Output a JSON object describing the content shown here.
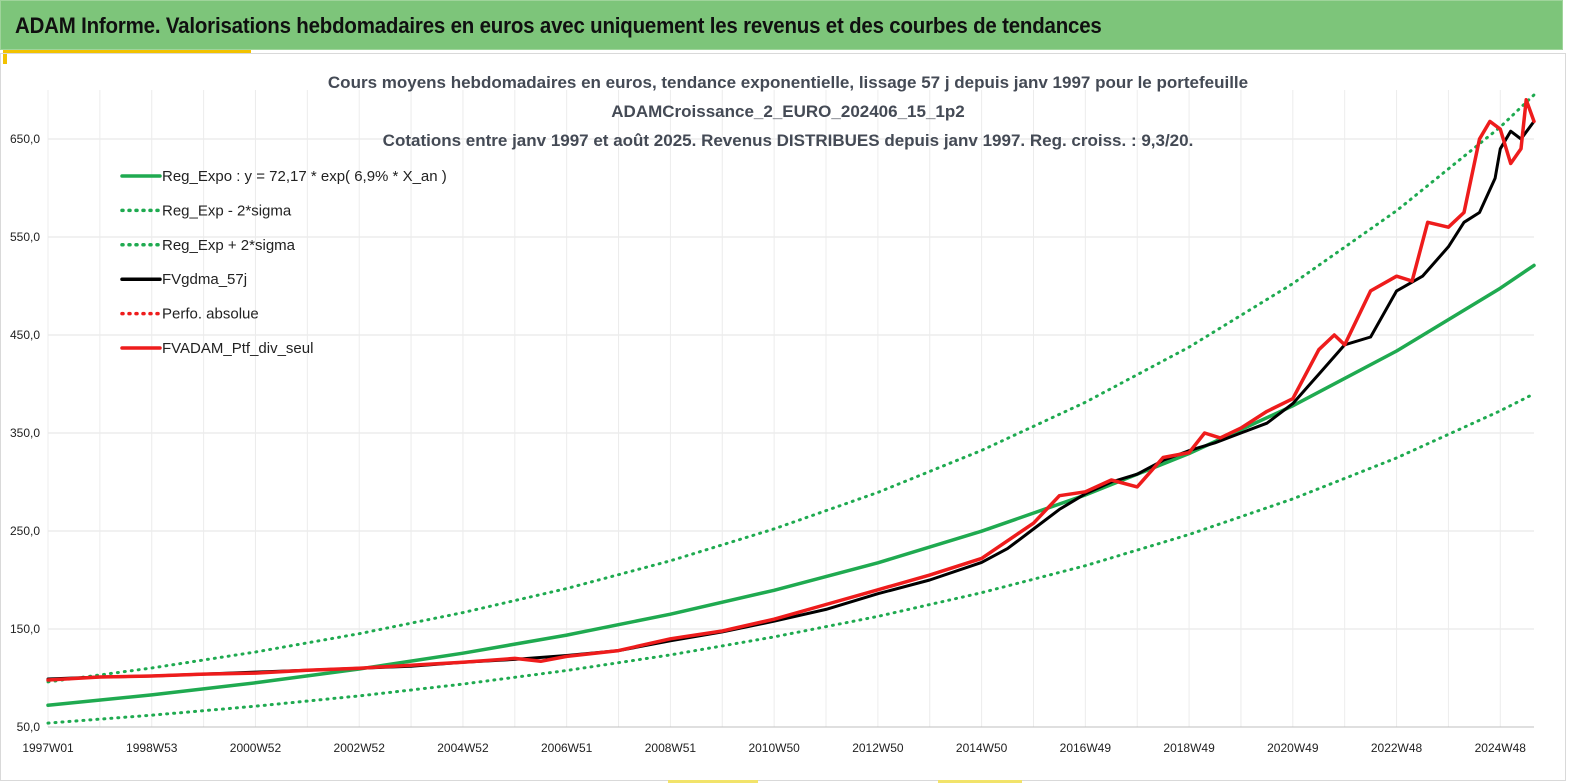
{
  "banner": {
    "title": "ADAM Informe. Valorisations hebdomadaires en euros avec uniquement les revenus et des courbes de tendances"
  },
  "chart_data": {
    "type": "line",
    "title": [
      "Cours moyens hebdomadaires  en euros, tendance exponentielle, lissage 57 j depuis janv 1997 pour le portefeuille",
      "ADAMCroissance_2_EURO_202406_15_1p2",
      "Cotations  entre janv 1997 et août 2025. Revenus DISTRIBUES depuis janv 1997. Reg. croiss. : 9,3/20."
    ],
    "xlabel": "",
    "ylabel": "",
    "ylim": [
      50,
      700
    ],
    "xlim": [
      1997.0,
      2025.65
    ],
    "y_ticks": [
      "50,0",
      "150,0",
      "250,0",
      "350,0",
      "450,0",
      "550,0",
      "650,0"
    ],
    "y_tick_values": [
      50,
      150,
      250,
      350,
      450,
      550,
      650
    ],
    "x_ticks": [
      "1997W01",
      "1998W53",
      "2000W52",
      "2002W52",
      "2004W52",
      "2006W51",
      "2008W51",
      "2010W50",
      "2012W50",
      "2014W50",
      "2016W49",
      "2018W49",
      "2020W49",
      "2022W48",
      "2024W48"
    ],
    "x_tick_values": [
      1997.0,
      1999.0,
      2001.0,
      2003.0,
      2005.0,
      2007.0,
      2009.0,
      2011.0,
      2013.0,
      2015.0,
      2017.0,
      2019.0,
      2021.0,
      2023.0,
      2025.0
    ],
    "grid": true,
    "legend_position": "top-left",
    "colors": {
      "reg": "#1faa50",
      "black": "#000000",
      "red": "#ee1c1c"
    },
    "legend": [
      {
        "label": "Reg_Expo : y = 72,17 * exp( 6,9% *  X_an )",
        "color": "#1faa50",
        "style": "solid"
      },
      {
        "label": "Reg_Exp - 2*sigma",
        "color": "#1faa50",
        "style": "dotted"
      },
      {
        "label": "Reg_Exp + 2*sigma",
        "color": "#1faa50",
        "style": "dotted"
      },
      {
        "label": "FVgdma_57j",
        "color": "#000000",
        "style": "solid"
      },
      {
        "label": "Perfo. absolue",
        "color": "#ee1c1c",
        "style": "dotted"
      },
      {
        "label": "FVADAM_Ptf_div_seul",
        "color": "#ee1c1c",
        "style": "solid"
      }
    ],
    "series": [
      {
        "name": "Reg_Expo : y = 72,17 * exp( 6,9% *  X_an )",
        "x": [
          1997.0,
          1999.0,
          2001.0,
          2003.0,
          2005.0,
          2007.0,
          2009.0,
          2011.0,
          2013.0,
          2015.0,
          2017.0,
          2019.0,
          2021.0,
          2023.0,
          2025.0,
          2025.65
        ],
        "values": [
          72.2,
          82.8,
          95.1,
          109.2,
          125.3,
          143.8,
          165.1,
          189.5,
          217.6,
          249.8,
          286.7,
          329.1,
          377.8,
          433.7,
          497.8,
          521.0
        ]
      },
      {
        "name": "Reg_Exp - 2*sigma",
        "x": [
          1997.0,
          1999.0,
          2001.0,
          2003.0,
          2005.0,
          2007.0,
          2009.0,
          2011.0,
          2013.0,
          2015.0,
          2017.0,
          2019.0,
          2021.0,
          2023.0,
          2025.0,
          2025.65
        ],
        "values": [
          54.0,
          62.0,
          71.2,
          81.7,
          93.8,
          107.7,
          123.6,
          141.9,
          162.9,
          187.0,
          214.6,
          246.4,
          282.8,
          324.6,
          372.7,
          390.0
        ]
      },
      {
        "name": "Reg_Exp + 2*sigma",
        "x": [
          1997.0,
          1999.0,
          2001.0,
          2003.0,
          2005.0,
          2007.0,
          2009.0,
          2011.0,
          2013.0,
          2015.0,
          2017.0,
          2019.0,
          2021.0,
          2023.0,
          2025.0,
          2025.65
        ],
        "values": [
          96.0,
          110.2,
          126.5,
          145.2,
          166.7,
          191.3,
          219.6,
          252.1,
          289.4,
          332.2,
          381.3,
          437.7,
          502.5,
          576.8,
          662.2,
          695.0
        ]
      },
      {
        "name": "FVgdma_57j",
        "x": [
          1997.0,
          1998.0,
          1999.0,
          2000.0,
          2001.0,
          2002.0,
          2003.0,
          2004.0,
          2005.0,
          2006.0,
          2007.0,
          2008.0,
          2009.0,
          2010.0,
          2011.0,
          2012.0,
          2013.0,
          2014.0,
          2015.0,
          2015.5,
          2016.0,
          2016.5,
          2017.0,
          2017.5,
          2018.0,
          2018.5,
          2019.0,
          2019.5,
          2020.0,
          2020.5,
          2021.0,
          2021.5,
          2022.0,
          2022.5,
          2023.0,
          2023.5,
          2024.0,
          2024.3,
          2024.6,
          2024.9,
          2025.0,
          2025.2,
          2025.4,
          2025.65
        ],
        "values": [
          99,
          101,
          102,
          104,
          106,
          108,
          110,
          112,
          116,
          119,
          123,
          128,
          138,
          147,
          158,
          170,
          186,
          200,
          218,
          232,
          252,
          272,
          288,
          300,
          308,
          322,
          332,
          340,
          350,
          360,
          380,
          410,
          440,
          448,
          495,
          510,
          540,
          565,
          575,
          610,
          640,
          658,
          650,
          668
        ]
      },
      {
        "name": "FVADAM_Ptf_div_seul",
        "x": [
          1997.0,
          1998.0,
          1999.0,
          2000.0,
          2001.0,
          2002.0,
          2003.0,
          2004.0,
          2005.0,
          2006.0,
          2006.5,
          2007.0,
          2008.0,
          2009.0,
          2010.0,
          2011.0,
          2012.0,
          2013.0,
          2014.0,
          2015.0,
          2015.5,
          2016.0,
          2016.5,
          2017.0,
          2017.5,
          2018.0,
          2018.5,
          2019.0,
          2019.3,
          2019.6,
          2020.0,
          2020.5,
          2021.0,
          2021.5,
          2021.8,
          2022.0,
          2022.5,
          2023.0,
          2023.3,
          2023.6,
          2024.0,
          2024.3,
          2024.6,
          2024.8,
          2025.0,
          2025.2,
          2025.4,
          2025.5,
          2025.65
        ],
        "values": [
          98,
          101,
          102,
          104,
          105,
          108,
          110,
          113,
          116,
          120,
          117,
          122,
          128,
          140,
          148,
          160,
          175,
          190,
          205,
          222,
          240,
          258,
          286,
          290,
          302,
          295,
          325,
          330,
          350,
          345,
          355,
          372,
          385,
          435,
          450,
          440,
          495,
          510,
          505,
          565,
          560,
          575,
          650,
          668,
          660,
          625,
          640,
          690,
          668
        ]
      },
      {
        "name": "Perfo. absolue",
        "x": [
          1997.0,
          1999.0,
          2001.0,
          2003.0,
          2005.0,
          2007.0,
          2009.0,
          2011.0,
          2013.0,
          2015.0,
          2017.0,
          2019.0,
          2021.0,
          2023.0,
          2025.0,
          2025.65
        ],
        "values": [
          98,
          102,
          105,
          110,
          116,
          122,
          140,
          160,
          190,
          222,
          290,
          330,
          385,
          510,
          660,
          668
        ]
      }
    ]
  }
}
